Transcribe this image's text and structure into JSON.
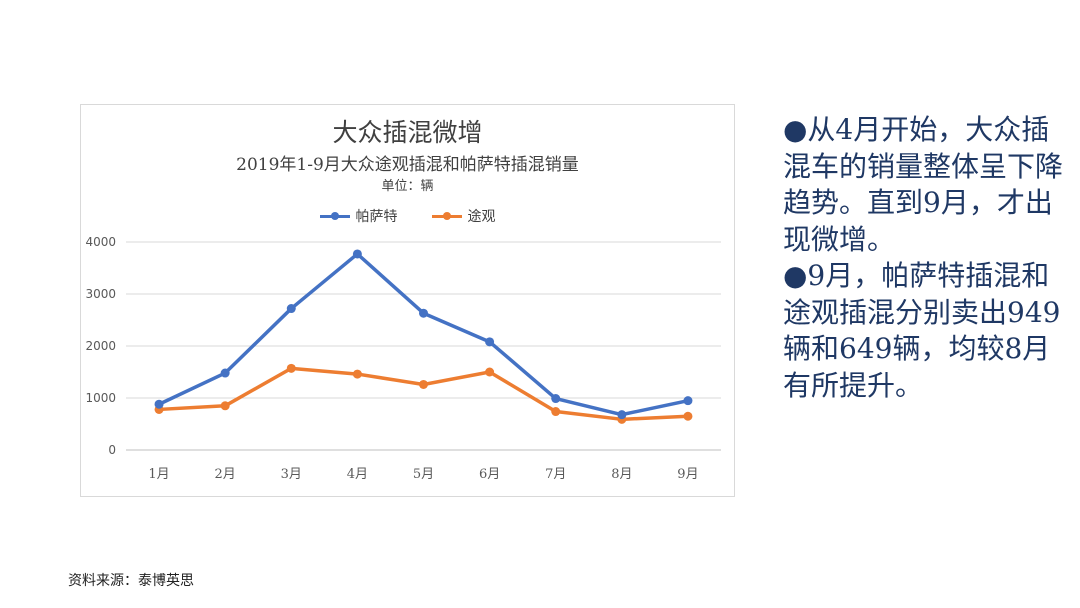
{
  "chart_data": {
    "type": "line",
    "title": "大众插混微增",
    "subtitle": "2019年1-9月大众途观插混和帕萨特插混销量",
    "unit": "单位：辆",
    "categories": [
      "1月",
      "2月",
      "3月",
      "4月",
      "5月",
      "6月",
      "7月",
      "8月",
      "9月"
    ],
    "series": [
      {
        "name": "帕萨特",
        "color": "#4472c4",
        "values": [
          880,
          1480,
          2720,
          3770,
          2630,
          2080,
          990,
          680,
          949
        ]
      },
      {
        "name": "途观",
        "color": "#ed7d31",
        "values": [
          780,
          850,
          1570,
          1460,
          1260,
          1500,
          740,
          590,
          649
        ]
      }
    ],
    "yticks": [
      "0",
      "1000",
      "2000",
      "3000",
      "4000"
    ],
    "ylim": [
      0,
      4000
    ],
    "grid": true,
    "legend_position": "top"
  },
  "side_text": {
    "paragraph1": "●从4月开始，大众插混车的销量整体呈下降趋势。直到9月，才出现微增。",
    "paragraph2": "●9月，帕萨特插混和途观插混分别卖出949辆和649辆，均较8月有所提升。"
  },
  "source": "资料来源：泰博英思"
}
